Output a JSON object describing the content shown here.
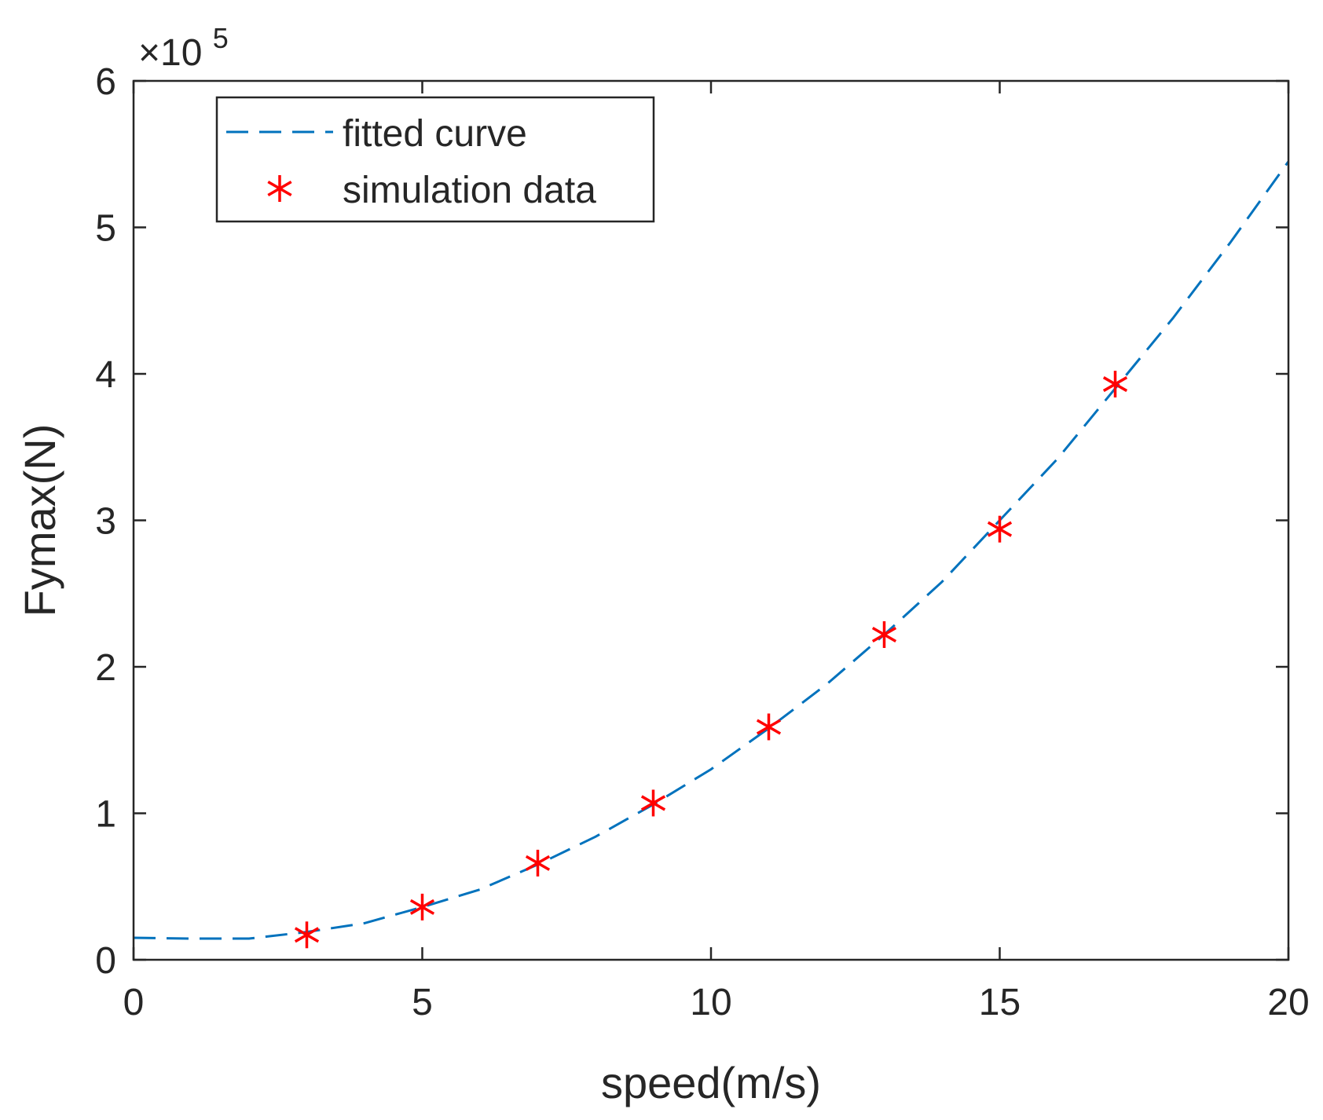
{
  "chart_data": {
    "type": "line",
    "title": "",
    "xlabel": "speed(m/s)",
    "ylabel": "Fymax(N)",
    "xlim": [
      0,
      20
    ],
    "ylim": [
      0,
      600000
    ],
    "xticks": [
      0,
      5,
      10,
      15,
      20
    ],
    "xtick_labels": [
      "0",
      "5",
      "10",
      "15",
      "20"
    ],
    "yticks": [
      0,
      100000,
      200000,
      300000,
      400000,
      500000,
      600000
    ],
    "ytick_labels": [
      "0",
      "1",
      "2",
      "3",
      "4",
      "5",
      "6"
    ],
    "y_exponent_label": {
      "prefix": "×10",
      "power": "5"
    },
    "grid": false,
    "legend_position": "top-left",
    "series": [
      {
        "name": "fitted curve",
        "style": "dashed-line",
        "color": "#0072BD",
        "x": [
          0,
          1,
          2,
          3,
          4,
          5,
          6,
          7,
          8,
          9,
          10,
          11,
          12,
          13,
          14,
          15,
          16,
          17,
          18,
          19,
          20
        ],
        "y": [
          15000,
          14500,
          14500,
          19000,
          25000,
          36000,
          48000,
          65000,
          84000,
          106000,
          130000,
          158000,
          188000,
          222000,
          258000,
          300000,
          342000,
          390000,
          438000,
          490000,
          545000
        ]
      },
      {
        "name": "simulation data",
        "style": "asterisk-markers",
        "color": "#FF0000",
        "x": [
          3,
          5,
          7,
          9,
          11,
          13,
          15,
          17
        ],
        "y": [
          17000,
          36000,
          66000,
          107000,
          159000,
          222000,
          294000,
          393000
        ]
      }
    ]
  }
}
